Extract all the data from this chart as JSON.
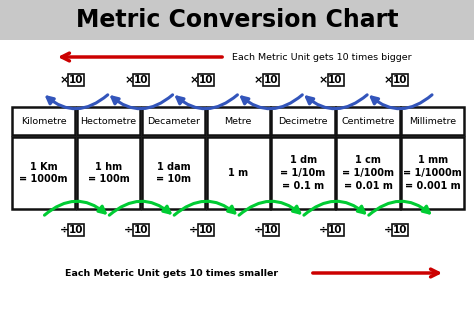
{
  "title": "Metric Conversion Chart",
  "title_fontsize": 17,
  "bg_color": "#ffffff",
  "header_bg": "#c8c8c8",
  "units": [
    "Kilometre",
    "Hectometre",
    "Decameter",
    "Metre",
    "Decimetre",
    "Centimetre",
    "Millimetre"
  ],
  "values": [
    "1 Km\n= 1000m",
    "1 hm\n= 100m",
    "1 dam\n= 10m",
    "1 m",
    "1 dm\n= 1/10m\n= 0.1 m",
    "1 cm\n= 1/100m\n= 0.01 m",
    "1 mm\n= 1/1000m\n= 0.001 m"
  ],
  "multiply_label": "Each Metric Unit gets 10 times bigger",
  "divide_label": "Each Meteric Unit gets 10 times smaller",
  "arrow_color": "#cc0000",
  "curve_color_top": "#3355bb",
  "curve_color_bottom": "#00cc33",
  "text_color": "#000000",
  "n_cols": 7,
  "fig_w": 4.74,
  "fig_h": 3.35,
  "dpi": 100
}
